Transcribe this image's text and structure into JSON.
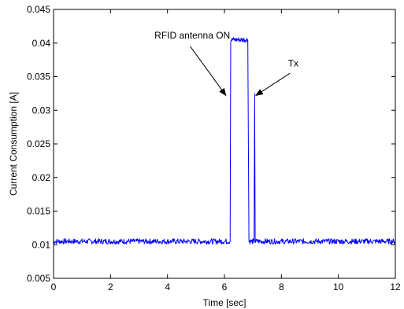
{
  "chart_data": {
    "type": "line",
    "xlabel": "Time [sec]",
    "ylabel": "Current Consumption [A]",
    "xlim": [
      0,
      12
    ],
    "ylim": [
      0.005,
      0.045
    ],
    "x_ticks": [
      0,
      2,
      4,
      6,
      8,
      10,
      12
    ],
    "y_ticks": [
      0.005,
      0.01,
      0.015,
      0.02,
      0.025,
      0.03,
      0.035,
      0.04,
      0.045
    ],
    "x_tick_labels": [
      "0",
      "2",
      "4",
      "6",
      "8",
      "10",
      "12"
    ],
    "y_tick_labels": [
      "0.005",
      "0.01",
      "0.015",
      "0.02",
      "0.025",
      "0.03",
      "0.035",
      "0.04",
      "0.045"
    ],
    "grid": false,
    "series": [
      {
        "color": "#0000ff",
        "x": [
          0,
          6.2,
          6.22,
          6.82,
          6.84,
          6.86,
          6.88,
          7.0,
          7.04,
          7.06,
          7.08,
          12
        ],
        "y": [
          0.0105,
          0.0105,
          0.0405,
          0.0405,
          0.0255,
          0.0105,
          0.0105,
          0.0105,
          0.0105,
          0.0325,
          0.0105,
          0.0105
        ],
        "noise_amplitude": 0.0004
      }
    ],
    "annotations": [
      {
        "text": "RFID antenna ON",
        "text_x": 6.2,
        "text_y": 0.0407,
        "arrow_from": [
          4.8,
          0.0395
        ],
        "arrow_to": [
          6.05,
          0.0322
        ]
      },
      {
        "text": "Tx",
        "text_x": 8.6,
        "text_y": 0.0365,
        "arrow_from": [
          8.3,
          0.0355
        ],
        "arrow_to": [
          7.1,
          0.0322
        ]
      }
    ]
  }
}
